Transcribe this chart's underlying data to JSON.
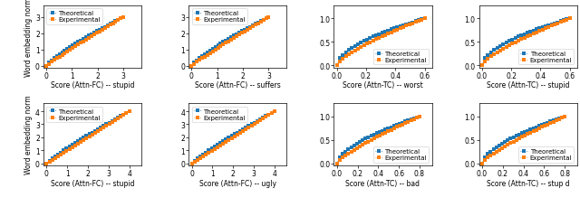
{
  "subplots": [
    {
      "xlabel": "Score (Attn-FC) -- stupid",
      "xlim": [
        -0.1,
        3.7
      ],
      "ylim": [
        -0.1,
        3.7
      ],
      "yticks": [
        0,
        1,
        2,
        3
      ],
      "xticks": [
        0,
        1,
        2,
        3
      ],
      "exp_power": 0.95,
      "theo_power": 0.82,
      "legend_loc": "upper left"
    },
    {
      "xlabel": "Score (Attn-FC) -- suffers",
      "xlim": [
        -0.1,
        3.7
      ],
      "ylim": [
        -0.1,
        3.7
      ],
      "yticks": [
        0,
        1,
        2,
        3
      ],
      "xticks": [
        0,
        1,
        2,
        3
      ],
      "exp_power": 0.95,
      "theo_power": 0.82,
      "legend_loc": "upper left"
    },
    {
      "xlabel": "Score (Attn-TC) -- worst",
      "xlim": [
        -0.02,
        0.65
      ],
      "ylim": [
        -0.04,
        1.28
      ],
      "yticks": [
        0.0,
        0.5,
        1.0
      ],
      "xticks": [
        0.0,
        0.2,
        0.4,
        0.6
      ],
      "exp_power": 0.72,
      "theo_power": 0.55,
      "legend_loc": "lower right"
    },
    {
      "xlabel": "Score (Attn-TC) -- stupid",
      "xlim": [
        -0.02,
        0.65
      ],
      "ylim": [
        -0.04,
        1.28
      ],
      "yticks": [
        0.0,
        0.5,
        1.0
      ],
      "xticks": [
        0.0,
        0.2,
        0.4,
        0.6
      ],
      "exp_power": 0.72,
      "theo_power": 0.55,
      "legend_loc": "lower right"
    },
    {
      "xlabel": "Score (Attn-FC) -- stupid",
      "xlim": [
        -0.15,
        4.6
      ],
      "ylim": [
        -0.15,
        4.6
      ],
      "yticks": [
        0,
        1,
        2,
        3,
        4
      ],
      "xticks": [
        0,
        1,
        2,
        3,
        4
      ],
      "exp_power": 1.0,
      "theo_power": 0.88,
      "legend_loc": "upper left"
    },
    {
      "xlabel": "Score (Attn-FC) -- ugly",
      "xlim": [
        -0.15,
        4.6
      ],
      "ylim": [
        -0.15,
        4.6
      ],
      "yticks": [
        0,
        1,
        2,
        3,
        4
      ],
      "xticks": [
        0,
        1,
        2,
        3,
        4
      ],
      "exp_power": 1.0,
      "theo_power": 0.88,
      "legend_loc": "upper left"
    },
    {
      "xlabel": "Score (Attn-TC) -- bad",
      "xlim": [
        -0.03,
        0.92
      ],
      "ylim": [
        -0.04,
        1.28
      ],
      "yticks": [
        0.0,
        0.5,
        1.0
      ],
      "xticks": [
        0.0,
        0.2,
        0.4,
        0.6,
        0.8
      ],
      "exp_power": 0.78,
      "theo_power": 0.6,
      "legend_loc": "lower right"
    },
    {
      "xlabel": "Score (Attn-TC) -- stup d",
      "xlim": [
        -0.03,
        0.92
      ],
      "ylim": [
        -0.04,
        1.28
      ],
      "yticks": [
        0.0,
        0.5,
        1.0
      ],
      "xticks": [
        0.0,
        0.2,
        0.4,
        0.6,
        0.8
      ],
      "exp_power": 0.78,
      "theo_power": 0.6,
      "legend_loc": "lower right"
    }
  ],
  "color_theoretical": "#1f77b4",
  "color_experimental": "#ff7f0e",
  "ylabel": "Word embedding norm",
  "legend_theoretical": "Theoretical",
  "legend_experimental": "Experimental",
  "n_pts": 30,
  "marker_size": 2.2,
  "font_size": 5.5
}
